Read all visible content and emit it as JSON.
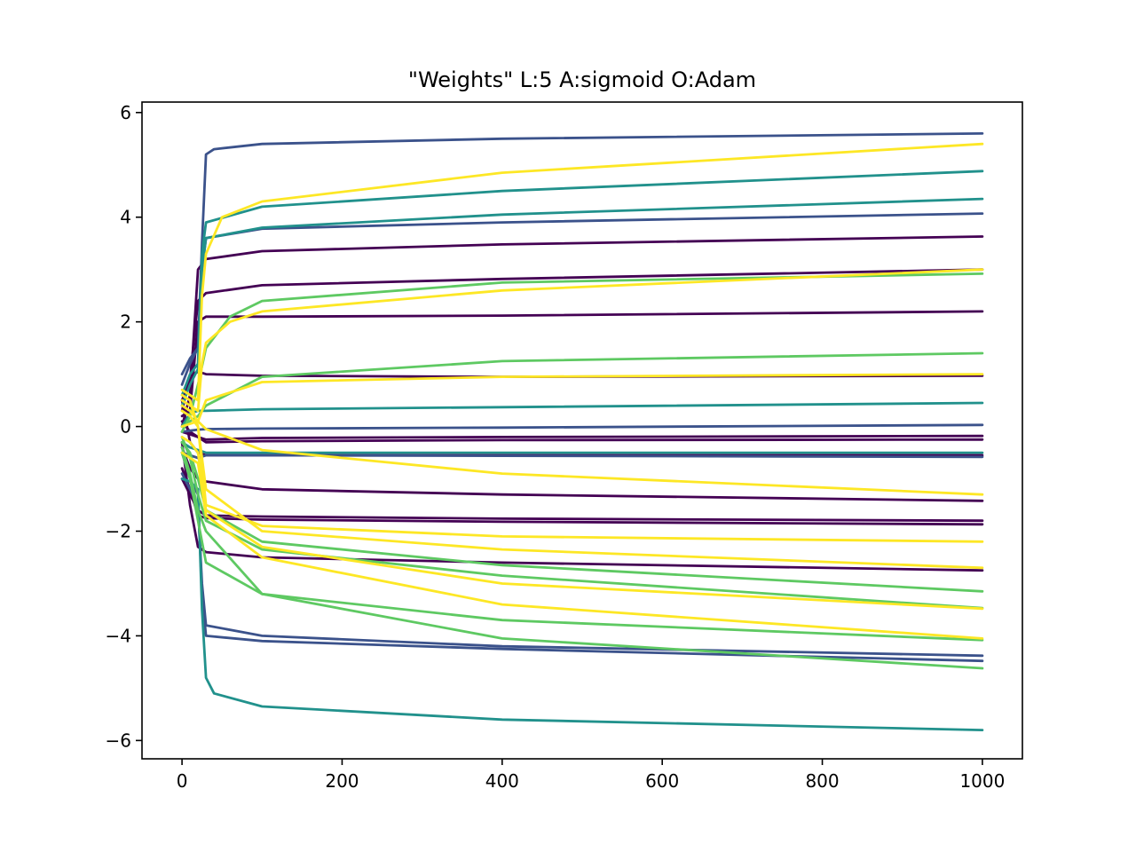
{
  "chart_data": {
    "type": "line",
    "title": "\"Weights\" L:5 A:sigmoid O:Adam",
    "xlabel": "",
    "ylabel": "",
    "xlim": [
      -50,
      1050
    ],
    "ylim": [
      -6.35,
      6.2
    ],
    "xticks": [
      0,
      200,
      400,
      600,
      800,
      1000
    ],
    "xtick_labels": [
      "0",
      "200",
      "400",
      "600",
      "800",
      "1000"
    ],
    "yticks": [
      -6,
      -4,
      -2,
      0,
      2,
      4,
      6
    ],
    "ytick_labels": [
      "−6",
      "−4",
      "−2",
      "0",
      "2",
      "4",
      "6"
    ],
    "grid": false,
    "layer_colors": [
      "#440154",
      "#3b528b",
      "#21918c",
      "#5ec962",
      "#fde725"
    ],
    "series": [
      {
        "layer": 0,
        "values": [
          [
            0,
            0.2
          ],
          [
            10,
            0.3
          ],
          [
            20,
            2.0
          ],
          [
            30,
            2.1
          ],
          [
            100,
            2.1
          ],
          [
            400,
            2.12
          ],
          [
            1000,
            2.2
          ]
        ]
      },
      {
        "layer": 0,
        "values": [
          [
            0,
            0.5
          ],
          [
            10,
            0.9
          ],
          [
            20,
            2.4
          ],
          [
            30,
            2.55
          ],
          [
            100,
            2.7
          ],
          [
            400,
            2.82
          ],
          [
            1000,
            3.0
          ]
        ]
      },
      {
        "layer": 0,
        "values": [
          [
            0,
            0.0
          ],
          [
            10,
            0.6
          ],
          [
            20,
            3.0
          ],
          [
            30,
            3.2
          ],
          [
            100,
            3.35
          ],
          [
            400,
            3.48
          ],
          [
            1000,
            3.63
          ]
        ]
      },
      {
        "layer": 0,
        "values": [
          [
            0,
            0.3
          ],
          [
            10,
            0.95
          ],
          [
            20,
            1.05
          ],
          [
            30,
            1.0
          ],
          [
            100,
            0.97
          ],
          [
            400,
            0.95
          ],
          [
            1000,
            0.97
          ]
        ]
      },
      {
        "layer": 0,
        "values": [
          [
            0,
            -0.1
          ],
          [
            10,
            -0.15
          ],
          [
            20,
            -0.2
          ],
          [
            30,
            -0.3
          ],
          [
            100,
            -0.28
          ],
          [
            400,
            -0.26
          ],
          [
            1000,
            -0.25
          ]
        ]
      },
      {
        "layer": 0,
        "values": [
          [
            0,
            0.1
          ],
          [
            10,
            -0.1
          ],
          [
            20,
            -0.2
          ],
          [
            30,
            -0.25
          ],
          [
            100,
            -0.22
          ],
          [
            400,
            -0.2
          ],
          [
            1000,
            -0.18
          ]
        ]
      },
      {
        "layer": 0,
        "values": [
          [
            0,
            0.5
          ],
          [
            10,
            -0.3
          ],
          [
            20,
            -0.5
          ],
          [
            30,
            -0.55
          ],
          [
            100,
            -0.55
          ],
          [
            400,
            -0.55
          ],
          [
            1000,
            -0.55
          ]
        ]
      },
      {
        "layer": 0,
        "values": [
          [
            0,
            -0.4
          ],
          [
            10,
            -0.8
          ],
          [
            20,
            -1.0
          ],
          [
            30,
            -1.05
          ],
          [
            100,
            -1.2
          ],
          [
            400,
            -1.3
          ],
          [
            1000,
            -1.42
          ]
        ]
      },
      {
        "layer": 0,
        "values": [
          [
            0,
            -1.0
          ],
          [
            10,
            -1.3
          ],
          [
            20,
            -1.6
          ],
          [
            30,
            -1.7
          ],
          [
            100,
            -1.72
          ],
          [
            400,
            -1.76
          ],
          [
            1000,
            -1.8
          ]
        ]
      },
      {
        "layer": 0,
        "values": [
          [
            0,
            -0.8
          ],
          [
            10,
            -1.2
          ],
          [
            20,
            -1.7
          ],
          [
            30,
            -1.75
          ],
          [
            100,
            -1.78
          ],
          [
            400,
            -1.82
          ],
          [
            1000,
            -1.87
          ]
        ]
      },
      {
        "layer": 0,
        "values": [
          [
            0,
            -0.3
          ],
          [
            10,
            -1.5
          ],
          [
            20,
            -2.3
          ],
          [
            30,
            -2.4
          ],
          [
            100,
            -2.5
          ],
          [
            400,
            -2.6
          ],
          [
            1000,
            -2.75
          ]
        ]
      },
      {
        "layer": 1,
        "values": [
          [
            0,
            1.0
          ],
          [
            10,
            1.3
          ],
          [
            20,
            1.5
          ],
          [
            25,
            3.5
          ],
          [
            30,
            5.2
          ],
          [
            40,
            5.3
          ],
          [
            100,
            5.4
          ],
          [
            400,
            5.5
          ],
          [
            1000,
            5.6
          ]
        ]
      },
      {
        "layer": 1,
        "values": [
          [
            0,
            0.8
          ],
          [
            10,
            1.2
          ],
          [
            20,
            1.5
          ],
          [
            25,
            3.0
          ],
          [
            30,
            3.6
          ],
          [
            100,
            3.78
          ],
          [
            400,
            3.9
          ],
          [
            1000,
            4.07
          ]
        ]
      },
      {
        "layer": 1,
        "values": [
          [
            0,
            -0.1
          ],
          [
            10,
            -0.08
          ],
          [
            20,
            -0.06
          ],
          [
            30,
            -0.05
          ],
          [
            100,
            -0.04
          ],
          [
            400,
            -0.02
          ],
          [
            1000,
            0.03
          ]
        ]
      },
      {
        "layer": 1,
        "values": [
          [
            0,
            -0.5
          ],
          [
            10,
            -0.55
          ],
          [
            20,
            -0.6
          ],
          [
            30,
            -0.55
          ],
          [
            100,
            -0.55
          ],
          [
            400,
            -0.56
          ],
          [
            1000,
            -0.58
          ]
        ]
      },
      {
        "layer": 1,
        "values": [
          [
            0,
            -0.9
          ],
          [
            10,
            -1.2
          ],
          [
            20,
            -1.5
          ],
          [
            25,
            -3.0
          ],
          [
            30,
            -3.8
          ],
          [
            100,
            -4.0
          ],
          [
            400,
            -4.2
          ],
          [
            1000,
            -4.38
          ]
        ]
      },
      {
        "layer": 1,
        "values": [
          [
            0,
            -0.5
          ],
          [
            10,
            -1.0
          ],
          [
            20,
            -1.3
          ],
          [
            25,
            -3.2
          ],
          [
            30,
            -4.0
          ],
          [
            100,
            -4.1
          ],
          [
            400,
            -4.25
          ],
          [
            1000,
            -4.48
          ]
        ]
      },
      {
        "layer": 2,
        "values": [
          [
            0,
            0.6
          ],
          [
            10,
            1.0
          ],
          [
            20,
            1.2
          ],
          [
            25,
            3.3
          ],
          [
            30,
            3.9
          ],
          [
            100,
            4.2
          ],
          [
            400,
            4.5
          ],
          [
            1000,
            4.88
          ]
        ]
      },
      {
        "layer": 2,
        "values": [
          [
            0,
            0.4
          ],
          [
            10,
            0.8
          ],
          [
            20,
            1.1
          ],
          [
            25,
            3.0
          ],
          [
            30,
            3.6
          ],
          [
            100,
            3.8
          ],
          [
            400,
            4.05
          ],
          [
            1000,
            4.35
          ]
        ]
      },
      {
        "layer": 2,
        "values": [
          [
            0,
            0.0
          ],
          [
            10,
            0.25
          ],
          [
            20,
            0.3
          ],
          [
            30,
            0.3
          ],
          [
            100,
            0.33
          ],
          [
            400,
            0.37
          ],
          [
            1000,
            0.45
          ]
        ]
      },
      {
        "layer": 2,
        "values": [
          [
            0,
            -0.3
          ],
          [
            10,
            -0.4
          ],
          [
            20,
            -0.45
          ],
          [
            30,
            -0.5
          ],
          [
            100,
            -0.5
          ],
          [
            400,
            -0.5
          ],
          [
            1000,
            -0.5
          ]
        ]
      },
      {
        "layer": 2,
        "values": [
          [
            0,
            -1.0
          ],
          [
            10,
            -1.05
          ],
          [
            20,
            -1.2
          ],
          [
            25,
            -3.5
          ],
          [
            30,
            -4.8
          ],
          [
            40,
            -5.1
          ],
          [
            100,
            -5.35
          ],
          [
            400,
            -5.6
          ],
          [
            1000,
            -5.8
          ]
        ]
      },
      {
        "layer": 3,
        "values": [
          [
            0,
            -0.1
          ],
          [
            10,
            0.2
          ],
          [
            20,
            0.8
          ],
          [
            30,
            1.5
          ],
          [
            60,
            2.1
          ],
          [
            100,
            2.4
          ],
          [
            400,
            2.75
          ],
          [
            1000,
            2.92
          ]
        ]
      },
      {
        "layer": 3,
        "values": [
          [
            0,
            0.0
          ],
          [
            10,
            0.1
          ],
          [
            20,
            0.2
          ],
          [
            30,
            0.4
          ],
          [
            100,
            0.95
          ],
          [
            400,
            1.25
          ],
          [
            1000,
            1.4
          ]
        ]
      },
      {
        "layer": 3,
        "values": [
          [
            0,
            -0.3
          ],
          [
            10,
            -0.5
          ],
          [
            20,
            -1.0
          ],
          [
            30,
            -1.6
          ],
          [
            100,
            -2.2
          ],
          [
            400,
            -2.65
          ],
          [
            1000,
            -3.15
          ]
        ]
      },
      {
        "layer": 3,
        "values": [
          [
            0,
            -0.2
          ],
          [
            10,
            -0.6
          ],
          [
            20,
            -1.3
          ],
          [
            30,
            -1.8
          ],
          [
            100,
            -2.35
          ],
          [
            400,
            -2.85
          ],
          [
            1000,
            -3.47
          ]
        ]
      },
      {
        "layer": 3,
        "values": [
          [
            0,
            -0.5
          ],
          [
            10,
            -1.0
          ],
          [
            20,
            -1.8
          ],
          [
            30,
            -2.6
          ],
          [
            100,
            -3.2
          ],
          [
            400,
            -3.7
          ],
          [
            1000,
            -4.08
          ]
        ]
      },
      {
        "layer": 3,
        "values": [
          [
            0,
            -0.4
          ],
          [
            10,
            -0.9
          ],
          [
            20,
            -1.6
          ],
          [
            30,
            -2.0
          ],
          [
            100,
            -3.2
          ],
          [
            400,
            -4.05
          ],
          [
            1000,
            -4.62
          ]
        ]
      },
      {
        "layer": 4,
        "values": [
          [
            0,
            0.7
          ],
          [
            10,
            0.6
          ],
          [
            20,
            0.5
          ],
          [
            25,
            2.5
          ],
          [
            30,
            3.3
          ],
          [
            50,
            4.0
          ],
          [
            100,
            4.3
          ],
          [
            400,
            4.85
          ],
          [
            1000,
            5.4
          ]
        ]
      },
      {
        "layer": 4,
        "values": [
          [
            0,
            0.5
          ],
          [
            10,
            0.4
          ],
          [
            20,
            0.3
          ],
          [
            25,
            1.2
          ],
          [
            30,
            1.6
          ],
          [
            60,
            2.0
          ],
          [
            100,
            2.2
          ],
          [
            400,
            2.6
          ],
          [
            1000,
            3.0
          ]
        ]
      },
      {
        "layer": 4,
        "values": [
          [
            0,
            0.4
          ],
          [
            10,
            0.3
          ],
          [
            20,
            0.1
          ],
          [
            30,
            0.5
          ],
          [
            100,
            0.85
          ],
          [
            400,
            0.95
          ],
          [
            1000,
            1.0
          ]
        ]
      },
      {
        "layer": 4,
        "values": [
          [
            0,
            0.0
          ],
          [
            10,
            0.05
          ],
          [
            20,
            0.1
          ],
          [
            30,
            -0.05
          ],
          [
            100,
            -0.45
          ],
          [
            400,
            -0.9
          ],
          [
            1000,
            -1.3
          ]
        ]
      },
      {
        "layer": 4,
        "values": [
          [
            0,
            0.3
          ],
          [
            10,
            0.2
          ],
          [
            20,
            0.0
          ],
          [
            30,
            -1.5
          ],
          [
            100,
            -1.9
          ],
          [
            400,
            -2.1
          ],
          [
            1000,
            -2.2
          ]
        ]
      },
      {
        "layer": 4,
        "values": [
          [
            0,
            0.6
          ],
          [
            10,
            0.5
          ],
          [
            20,
            0.0
          ],
          [
            30,
            -1.2
          ],
          [
            100,
            -2.0
          ],
          [
            400,
            -2.35
          ],
          [
            1000,
            -2.7
          ]
        ]
      },
      {
        "layer": 4,
        "values": [
          [
            0,
            -0.2
          ],
          [
            10,
            -0.3
          ],
          [
            20,
            -0.5
          ],
          [
            30,
            -1.6
          ],
          [
            100,
            -2.3
          ],
          [
            400,
            -3.0
          ],
          [
            1000,
            -3.48
          ]
        ]
      },
      {
        "layer": 4,
        "values": [
          [
            0,
            -0.5
          ],
          [
            10,
            -0.6
          ],
          [
            20,
            -0.7
          ],
          [
            30,
            -1.7
          ],
          [
            100,
            -2.5
          ],
          [
            400,
            -3.4
          ],
          [
            1000,
            -4.05
          ]
        ]
      }
    ]
  }
}
